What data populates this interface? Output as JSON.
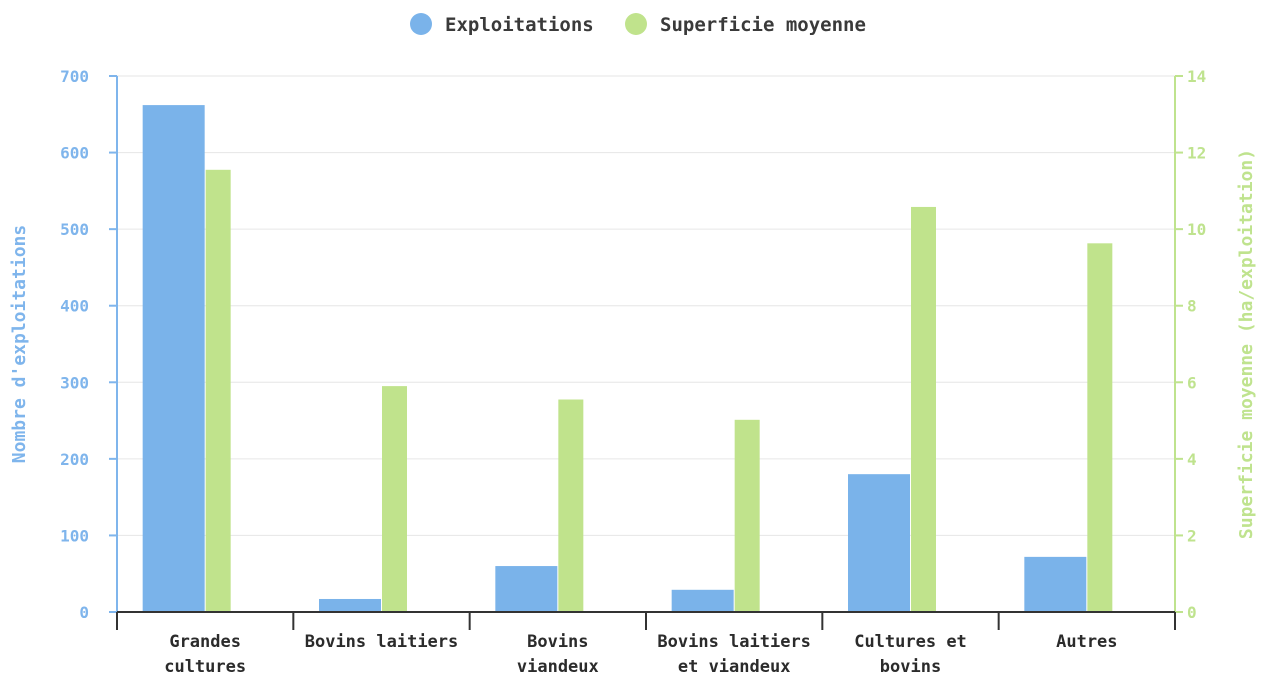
{
  "chart_data": {
    "type": "bar",
    "categories": [
      [
        "Grandes",
        "cultures"
      ],
      [
        "Bovins laitiers"
      ],
      [
        "Bovins",
        "viandeux"
      ],
      [
        "Bovins laitiers",
        "et viandeux"
      ],
      [
        "Cultures et",
        "bovins"
      ],
      [
        "Autres"
      ]
    ],
    "series": [
      {
        "name": "Exploitations",
        "axis": "left",
        "color": "#7ab3ea",
        "values": [
          662,
          17,
          60,
          29,
          180,
          72
        ]
      },
      {
        "name": "Superficie moyenne",
        "axis": "right",
        "color": "#c0e38c",
        "values": [
          11.55,
          5.9,
          5.55,
          5.02,
          10.58,
          9.63
        ]
      }
    ],
    "ylabel": "Nombre d'exploitations",
    "y2label": "Superficie moyenne (ha/exploitation)",
    "ylim": [
      0,
      700
    ],
    "y2lim": [
      0,
      14
    ],
    "yticks": [
      "0",
      "100",
      "200",
      "300",
      "400",
      "500",
      "600",
      "700"
    ],
    "y2ticks": [
      "0",
      "2",
      "4",
      "6",
      "8",
      "10",
      "12",
      "14"
    ],
    "grid": true,
    "legend_position": "top-center",
    "colors": {
      "left_axis": "#7fb5ec",
      "right_axis": "#bfe38e",
      "grid": "#e6e6e6",
      "baseline": "#333333"
    }
  }
}
